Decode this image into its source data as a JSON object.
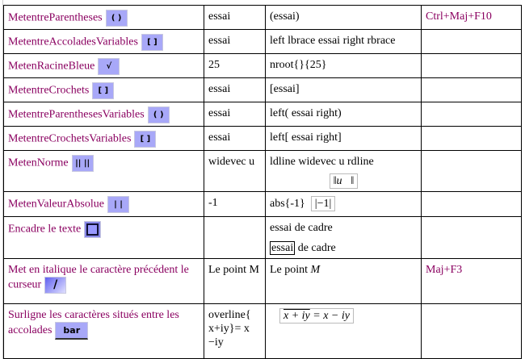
{
  "rows": [
    {
      "name": "MetentreParentheses",
      "icon": "( )",
      "icon_name": "parentheses-icon",
      "input": "essai",
      "syntax": "(essai)",
      "shortcut": "Ctrl+Maj+F10"
    },
    {
      "name": "MetentreAccoladesVariables",
      "icon": "[ ]",
      "icon_name": "braces-icon",
      "input": "essai",
      "syntax": "left lbrace essai right rbrace",
      "shortcut": ""
    },
    {
      "name": "MetenRacineBleue",
      "icon": "√",
      "icon_name": "root-icon",
      "input": "25",
      "syntax": "nroot{}{25}",
      "shortcut": ""
    },
    {
      "name": "MetentreCrochets",
      "icon": "[ ]",
      "icon_name": "brackets-icon",
      "input": "essai",
      "syntax": "[essai]",
      "shortcut": ""
    },
    {
      "name": "MetentreParenthesesVariables",
      "icon": "( )",
      "icon_name": "variable-parentheses-icon",
      "input": "essai",
      "syntax": "left( essai right)",
      "shortcut": ""
    },
    {
      "name": "MetentreCrochetsVariables",
      "icon": "[ ]",
      "icon_name": "variable-brackets-icon",
      "input": "essai",
      "syntax": "left[ essai right]",
      "shortcut": ""
    },
    {
      "name": "MetenNorme",
      "icon": "|| ||",
      "icon_name": "norm-icon",
      "input": "widevec u",
      "syntax": "ldline widevec u rdline",
      "rendered": "‖u⃗‖",
      "shortcut": ""
    },
    {
      "name": "MetenValeurAbsolue",
      "icon": "| |",
      "icon_name": "absolute-value-icon",
      "input": "-1",
      "syntax": "abs{-1}",
      "rendered": "|−1|",
      "shortcut": ""
    },
    {
      "name": "Encadre le texte",
      "icon": "",
      "icon_name": "frame-icon",
      "input": "",
      "syntax": "essai de cadre",
      "framed_word": "essai",
      "framed_rest": " de cadre",
      "shortcut": ""
    },
    {
      "name": "Met en italique le caractère précédent le curseur",
      "icon": "/",
      "icon_name": "italic-icon",
      "input": "Le point M",
      "syntax": "Le point ",
      "syntax_italic": "M",
      "shortcut": "Maj+F3"
    },
    {
      "name": "Surligne les caractères situés entre les accolades",
      "icon": "bar",
      "icon_name": "bar-icon",
      "input": "overline{ x+iy}= x −iy",
      "rendered_over": "x + iy",
      "rendered_rest": " = x − iy",
      "shortcut": ""
    }
  ]
}
